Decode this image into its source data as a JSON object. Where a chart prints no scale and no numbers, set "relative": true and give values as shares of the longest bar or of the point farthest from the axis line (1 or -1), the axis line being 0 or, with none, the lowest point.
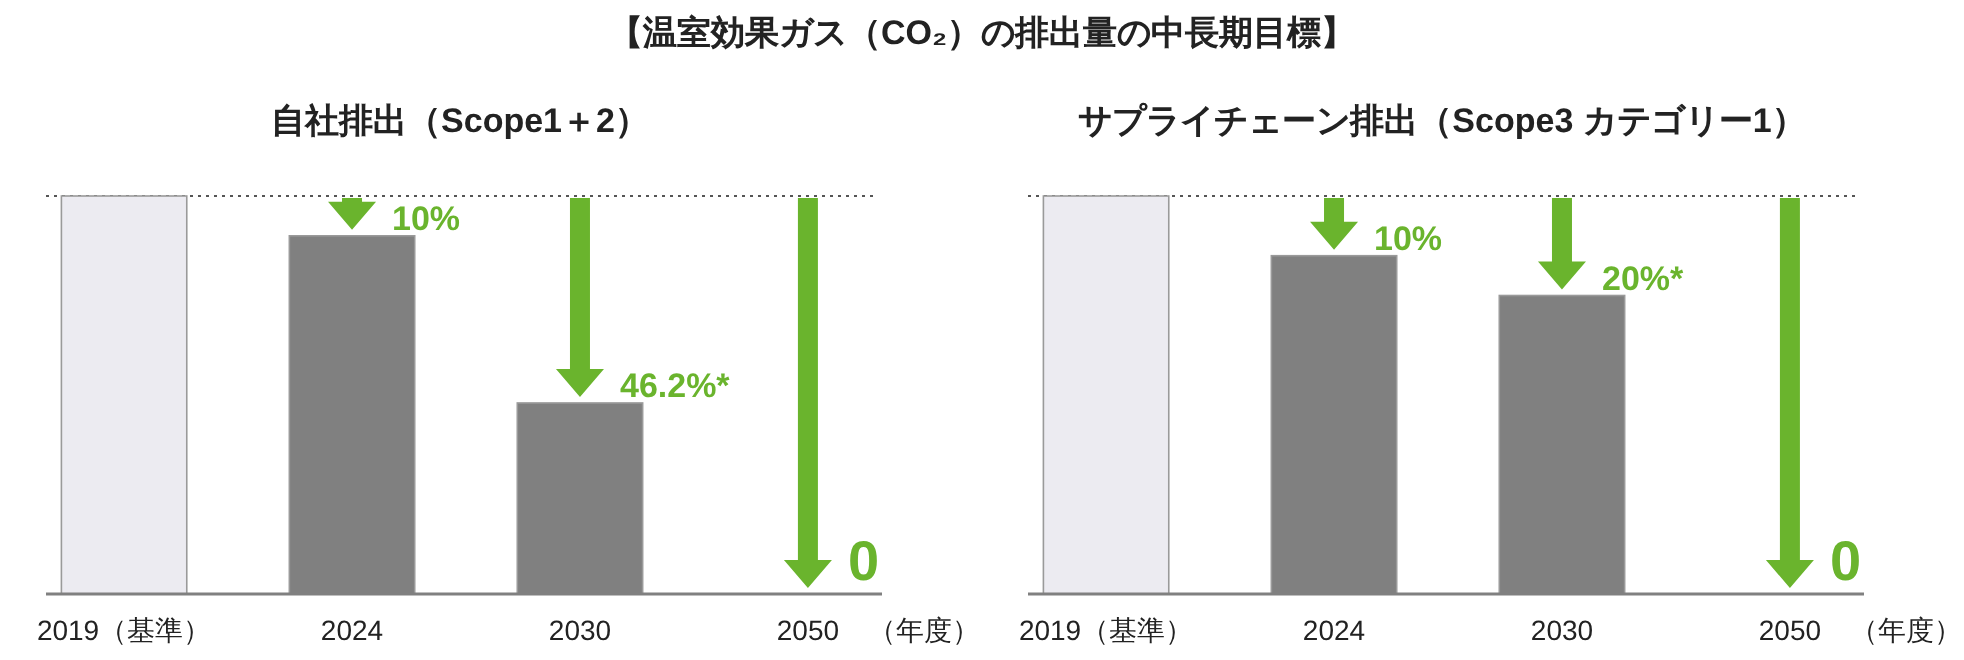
{
  "chart_data": [
    {
      "type": "bar",
      "title": "【温室効果ガス（CO₂）の排出量の中長期目標】",
      "subtitle": "自社排出（Scope1＋2）",
      "xlabel": "（年度）",
      "relative": true,
      "categories": [
        "2019（基準）",
        "2024",
        "2030",
        "2050"
      ],
      "values": [
        1,
        0.9,
        0.48,
        0
      ],
      "colors": [
        "#ecebf1",
        "#808080",
        "#808080",
        "#808080"
      ],
      "ref_lines": [
        {
          "axis": "y",
          "value": 1,
          "color": "#555555",
          "line_style": "dotted"
        }
      ],
      "annotations": [
        {
          "text": "10%",
          "x": "2024",
          "y": 0.9
        },
        {
          "text": "46.2%*",
          "x": "2030",
          "y": 0.48
        },
        {
          "text": "0",
          "x": "2050",
          "y": 0
        }
      ]
    },
    {
      "type": "bar",
      "subtitle": "サプライチェーン排出（Scope3 カテゴリー1）",
      "xlabel": "（年度）",
      "relative": true,
      "categories": [
        "2019（基準）",
        "2024",
        "2030",
        "2050"
      ],
      "values": [
        1,
        0.85,
        0.75,
        0
      ],
      "colors": [
        "#ecebf1",
        "#808080",
        "#808080",
        "#808080"
      ],
      "ref_lines": [
        {
          "axis": "y",
          "value": 1,
          "color": "#555555",
          "line_style": "dotted"
        }
      ],
      "annotations": [
        {
          "text": "10%",
          "x": "2024",
          "y": 0.85
        },
        {
          "text": "20%*",
          "x": "2030",
          "y": 0.75
        },
        {
          "text": "0",
          "x": "2050",
          "y": 0
        }
      ]
    }
  ]
}
